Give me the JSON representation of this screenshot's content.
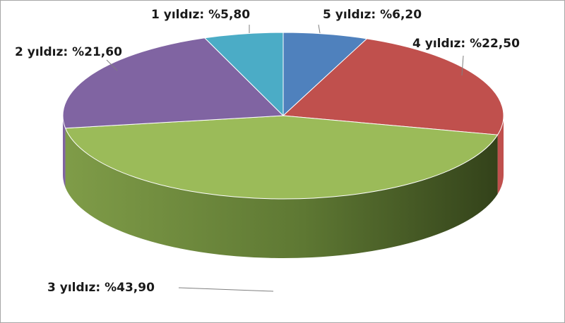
{
  "chart_data": {
    "type": "pie",
    "style": "3d",
    "slices": [
      {
        "category": "5 yıldız",
        "value": 6.2,
        "label": "5 yıldız: %6,20",
        "color": "#4f81bd"
      },
      {
        "category": "4 yıldız",
        "value": 22.5,
        "label": "4 yıldız: %22,50",
        "color": "#c0504d"
      },
      {
        "category": "3 yıldız",
        "value": 43.9,
        "label": "3 yıldız: %43,90",
        "color": "#9bbb59"
      },
      {
        "category": "2 yıldız",
        "value": 21.6,
        "label": "2 yıldız: %21,60",
        "color": "#8064a2"
      },
      {
        "category": "1 yıldız",
        "value": 5.8,
        "label": "1 yıldız: %5,80",
        "color": "#4bacc6"
      }
    ]
  }
}
